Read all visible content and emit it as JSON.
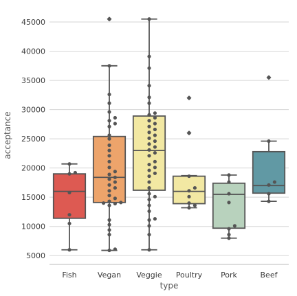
{
  "chart_data": {
    "type": "box",
    "title": "",
    "xlabel": "type",
    "ylabel": "acceptance",
    "ylim": [
      3500,
      47000
    ],
    "yticks": [
      5000,
      10000,
      15000,
      20000,
      25000,
      30000,
      35000,
      40000,
      45000
    ],
    "ytick_labels": [
      "5000",
      "10000",
      "15000",
      "20000",
      "25000",
      "30000",
      "35000",
      "40000",
      "45000"
    ],
    "grid": "horizontal",
    "legend": "none",
    "categories": [
      "Fish",
      "Vegan",
      "Veggie",
      "Poultry",
      "Pork",
      "Beef"
    ],
    "boxes": [
      {
        "category": "Fish",
        "color": "#dd5a52",
        "whisker_low": 6000,
        "q1": 11400,
        "median": 16000,
        "q3": 19000,
        "whisker_high": 20700,
        "fliers": [],
        "points": [
          6000,
          10500,
          12000,
          15800,
          19000,
          19200,
          20700
        ]
      },
      {
        "category": "Vegan",
        "color": "#eda46b",
        "whisker_low": 5900,
        "q1": 14100,
        "median": 18400,
        "q3": 25400,
        "whisker_high": 37500,
        "fliers": [
          45500
        ],
        "points": [
          5900,
          6100,
          8600,
          9400,
          10300,
          11100,
          13600,
          13900,
          14000,
          14100,
          14300,
          14800,
          15300,
          16100,
          16600,
          17100,
          17600,
          18100,
          18400,
          18900,
          19400,
          20100,
          21100,
          22100,
          23000,
          23900,
          25000,
          25600,
          27100,
          27600,
          28100,
          28600,
          29600,
          31100,
          32600,
          37500,
          45500
        ]
      },
      {
        "category": "Veggie",
        "color": "#f2e8a3",
        "whisker_low": 6000,
        "q1": 16200,
        "median": 23000,
        "q3": 28900,
        "whisker_high": 45500,
        "fliers": [],
        "points": [
          6000,
          8600,
          10100,
          11100,
          11300,
          12600,
          13600,
          14600,
          15100,
          15600,
          16600,
          17600,
          18600,
          19100,
          19600,
          20100,
          20600,
          21100,
          22100,
          22600,
          23100,
          23600,
          24100,
          24600,
          25100,
          25600,
          26100,
          26600,
          27100,
          27600,
          28100,
          28600,
          29100,
          29400,
          31100,
          32100,
          34100,
          37100,
          39100,
          45500
        ]
      },
      {
        "category": "Poultry",
        "color": "#f2e8a3",
        "whisker_low": 13200,
        "q1": 13900,
        "median": 16000,
        "q3": 18600,
        "whisker_high": 18700,
        "fliers": [
          26000,
          32000
        ],
        "points": [
          13200,
          13600,
          14000,
          15100,
          16100,
          16600,
          18600,
          26000,
          32000
        ]
      },
      {
        "category": "Pork",
        "color": "#b8d2bd",
        "whisker_low": 8000,
        "q1": 9700,
        "median": 15500,
        "q3": 17400,
        "whisker_high": 18800,
        "fliers": [],
        "points": [
          8000,
          8600,
          9600,
          10100,
          14100,
          15600,
          17600,
          18800
        ]
      },
      {
        "category": "Beef",
        "color": "#6199a4",
        "whisker_low": 14300,
        "q1": 15700,
        "median": 17000,
        "q3": 22800,
        "whisker_high": 24600,
        "fliers": [
          35500
        ],
        "points": [
          14300,
          15600,
          17100,
          17600,
          24600,
          35500
        ]
      }
    ]
  }
}
